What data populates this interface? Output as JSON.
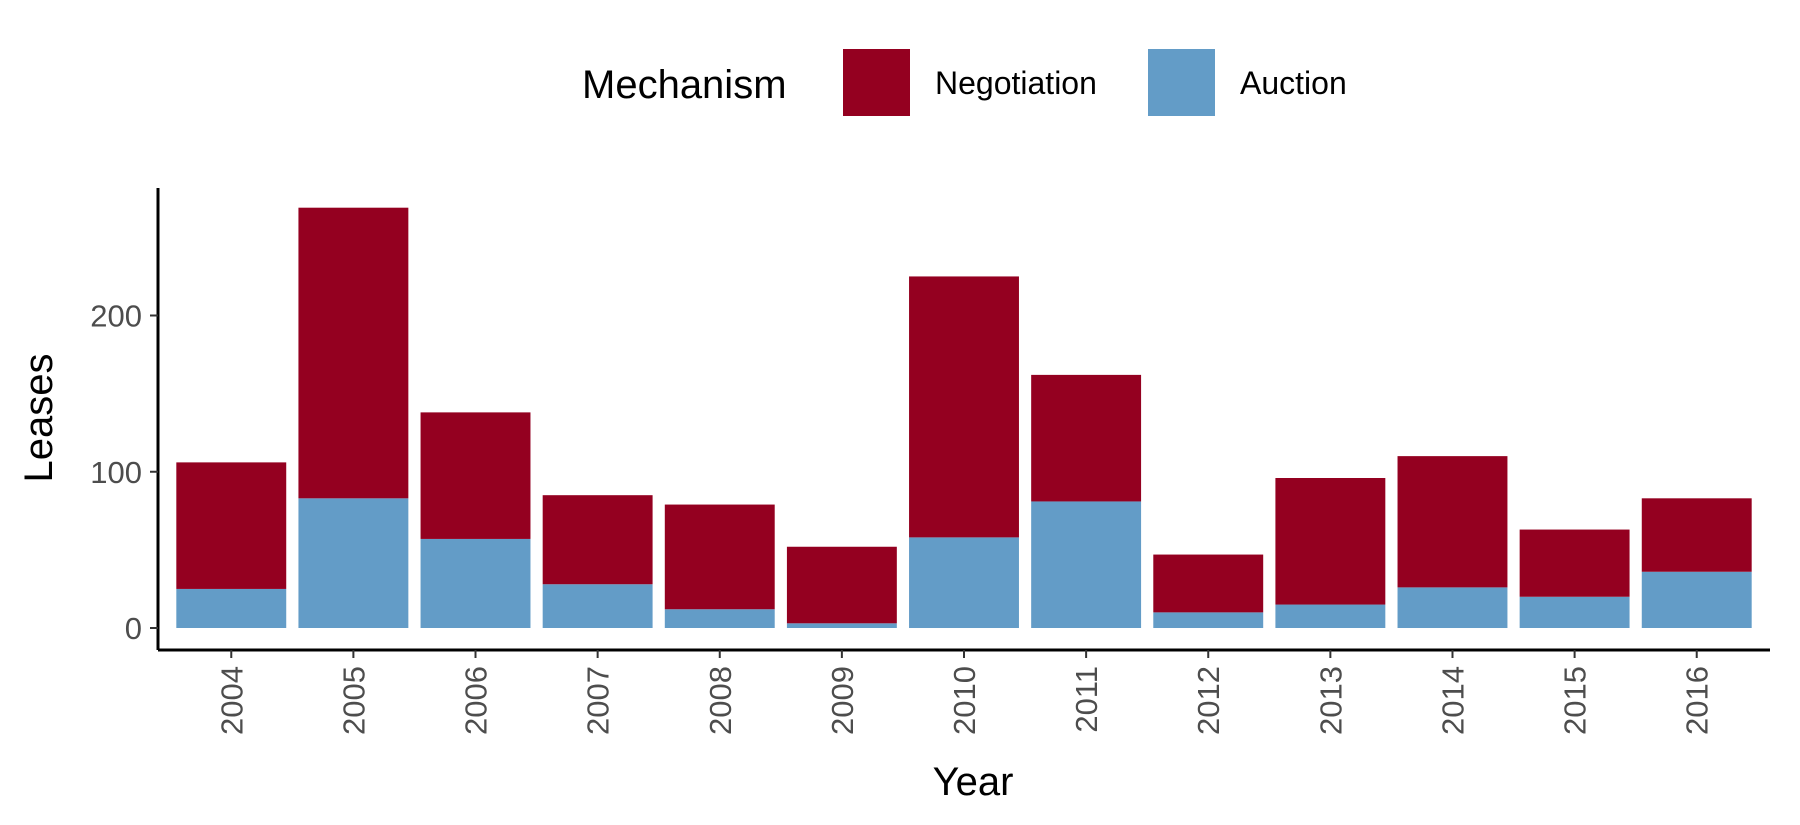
{
  "chart_data": {
    "type": "bar",
    "stacked": true,
    "title": "",
    "xlabel": "Year",
    "ylabel": "Leases",
    "ylim": [
      0,
      285
    ],
    "yticks": [
      0,
      100,
      200
    ],
    "grid": false,
    "legend": {
      "title": "Mechanism",
      "position": "top",
      "entries": [
        "Negotiation",
        "Auction"
      ]
    },
    "categories": [
      "2004",
      "2005",
      "2006",
      "2007",
      "2008",
      "2009",
      "2010",
      "2011",
      "2012",
      "2013",
      "2014",
      "2015",
      "2016"
    ],
    "series": [
      {
        "name": "Auction",
        "color": "#639cc7",
        "values": [
          25,
          83,
          57,
          28,
          12,
          3,
          58,
          81,
          10,
          15,
          26,
          20,
          36
        ]
      },
      {
        "name": "Negotiation",
        "color": "#940020",
        "values": [
          81,
          186,
          81,
          57,
          67,
          49,
          167,
          81,
          37,
          81,
          84,
          43,
          47
        ]
      }
    ]
  }
}
